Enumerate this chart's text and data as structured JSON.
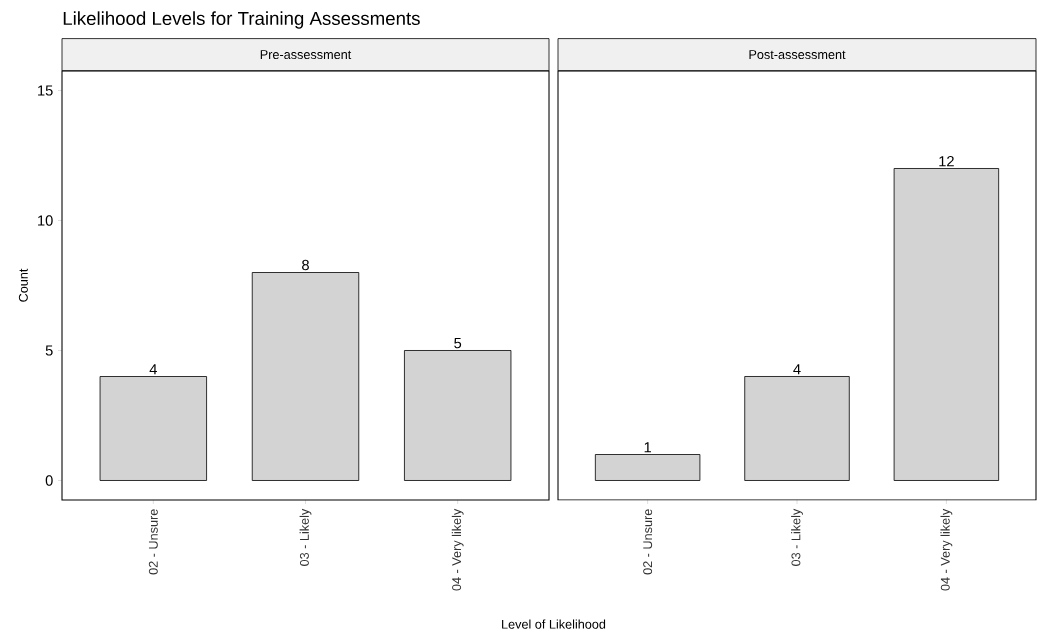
{
  "chart_data": [
    {
      "type": "bar",
      "title": "Likelihood Levels for Training Assessments",
      "subtitle": "Pre-assessment",
      "xlabel": "Level of Likelihood",
      "ylabel": "Count",
      "categories": [
        "02 - Unsure",
        "03 - Likely",
        "04 - Very likely"
      ],
      "values": [
        4,
        8,
        5
      ],
      "color": "#d3d3d3",
      "ylim": [
        -0.75,
        15.75
      ],
      "yticks": [
        0,
        5,
        10,
        15
      ],
      "data_labels": true,
      "grid": false
    },
    {
      "type": "bar",
      "subtitle": "Post-assessment",
      "categories": [
        "02 - Unsure",
        "03 - Likely",
        "04 - Very likely"
      ],
      "values": [
        1,
        4,
        12
      ],
      "color": "#d3d3d3",
      "ylim": [
        -0.75,
        15.75
      ],
      "data_labels": true,
      "grid": false,
      "tick_labels": "x"
    }
  ]
}
